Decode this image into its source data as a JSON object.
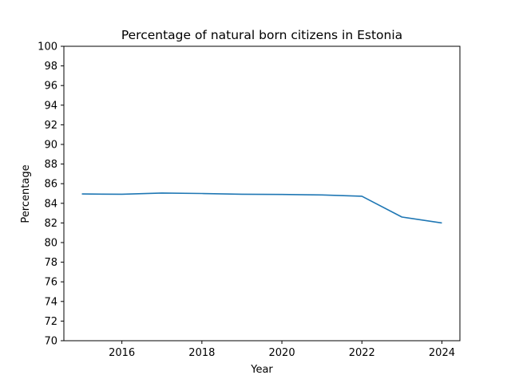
{
  "chart_data": {
    "type": "line",
    "title": "Percentage of natural born citizens in Estonia",
    "xlabel": "Year",
    "ylabel": "Percentage",
    "xlim": [
      2014.55,
      2024.45
    ],
    "ylim": [
      70,
      100
    ],
    "xticks": [
      2016,
      2018,
      2020,
      2022,
      2024
    ],
    "yticks": [
      70,
      72,
      74,
      76,
      78,
      80,
      82,
      84,
      86,
      88,
      90,
      92,
      94,
      96,
      98,
      100
    ],
    "grid": false,
    "series": [
      {
        "color": "#1f77b4",
        "x": [
          2015,
          2016,
          2017,
          2018,
          2019,
          2020,
          2021,
          2022,
          2023,
          2024
        ],
        "y": [
          84.95,
          84.92,
          85.05,
          85.0,
          84.92,
          84.9,
          84.85,
          84.72,
          82.6,
          82.0
        ]
      }
    ]
  }
}
